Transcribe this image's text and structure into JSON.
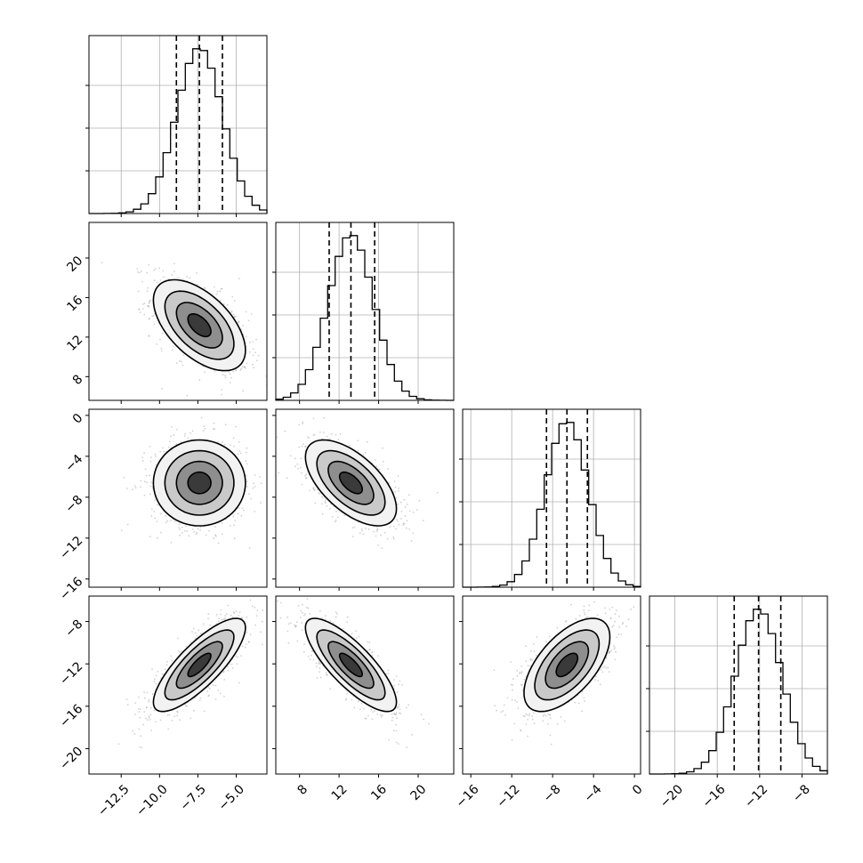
{
  "chart_data": {
    "type": "corner",
    "parameters": [
      {
        "index": 0,
        "mean": -7.4,
        "std": 1.5,
        "q16": -8.9,
        "q50": -7.4,
        "q84": -5.9,
        "range": [
          -14.6,
          -3.0
        ],
        "ticks": [
          {
            "v": -12.5,
            "label": "−12.5"
          },
          {
            "v": -10.0,
            "label": "−10.0"
          },
          {
            "v": -7.5,
            "label": "−7.5"
          },
          {
            "v": -5.0,
            "label": "−5.0"
          }
        ]
      },
      {
        "index": 1,
        "mean": 13.2,
        "std": 2.3,
        "q16": 11.0,
        "q50": 13.2,
        "q84": 15.6,
        "range": [
          5.6,
          23.6
        ],
        "ticks": [
          {
            "v": 8,
            "label": "8"
          },
          {
            "v": 12,
            "label": "12"
          },
          {
            "v": 16,
            "label": "16"
          },
          {
            "v": 20,
            "label": "20"
          }
        ]
      },
      {
        "index": 2,
        "mean": -6.6,
        "std": 2.1,
        "q16": -8.6,
        "q50": -6.6,
        "q84": -4.6,
        "range": [
          -16.8,
          0.6
        ],
        "ticks": [
          {
            "v": -16,
            "label": "−16"
          },
          {
            "v": -12,
            "label": "−12"
          },
          {
            "v": -8,
            "label": "−8"
          },
          {
            "v": -4,
            "label": "−4"
          },
          {
            "v": 0,
            "label": "0"
          }
        ]
      },
      {
        "index": 3,
        "mean": -12.1,
        "std": 2.2,
        "q16": -14.4,
        "q50": -12.1,
        "q84": -10.0,
        "range": [
          -22.4,
          -5.6
        ],
        "ticks": [
          {
            "v": -20,
            "label": "−20"
          },
          {
            "v": -16,
            "label": "−16"
          },
          {
            "v": -12,
            "label": "−12"
          },
          {
            "v": -8,
            "label": "−8"
          }
        ]
      }
    ],
    "correlations": [
      {
        "row": 1,
        "col": 0,
        "rho": -0.55
      },
      {
        "row": 2,
        "col": 0,
        "rho": 0.0
      },
      {
        "row": 2,
        "col": 1,
        "rho": -0.6
      },
      {
        "row": 3,
        "col": 0,
        "rho": 0.8
      },
      {
        "row": 3,
        "col": 1,
        "rho": -0.8
      },
      {
        "row": 3,
        "col": 2,
        "rho": 0.6
      }
    ],
    "contour_levels_sigma": [
      0.5,
      1.0,
      1.5,
      2.0
    ],
    "grid": true,
    "title": "",
    "xlabel": "",
    "ylabel": ""
  }
}
